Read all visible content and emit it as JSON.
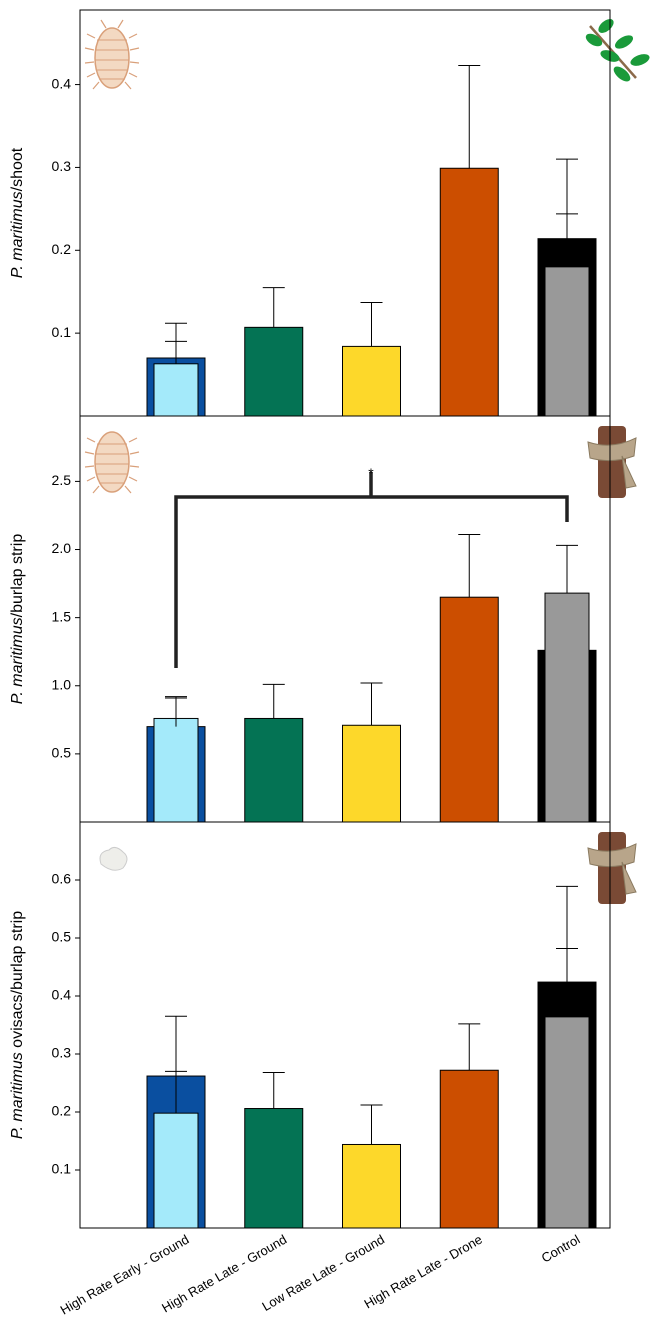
{
  "chart_data": [
    {
      "type": "bar",
      "ylabel": {
        "italic": "P. maritimus",
        "text": "/shoot"
      },
      "ylim": [
        0,
        0.49
      ],
      "yticks": [
        0.1,
        0.2,
        0.3,
        0.4
      ],
      "series": [
        {
          "colors": [
            "#0a4fa0",
            "#047354",
            "#fdd82a",
            "#cc4e00",
            "#000000"
          ],
          "values": [
            0.07,
            0.107,
            0.084,
            0.299,
            0.214
          ],
          "errors": [
            0.042,
            0.048,
            0.053,
            0.124,
            0.096
          ]
        },
        {
          "colors": [
            "#a4eafa",
            null,
            null,
            null,
            "#999999"
          ],
          "values": [
            0.063,
            null,
            null,
            null,
            0.18
          ],
          "errors": [
            0.027,
            null,
            null,
            null,
            0.064
          ]
        }
      ]
    },
    {
      "type": "bar",
      "ylabel": {
        "italic": "P. maritimus",
        "text": "/burlap strip"
      },
      "ylim": [
        0,
        2.98
      ],
      "yticks": [
        0.5,
        {
          "value": 1,
          "label": "1.0"
        },
        1.5,
        {
          "value": 2,
          "label": "2.0"
        },
        2.5
      ],
      "annotation": "*",
      "series": [
        {
          "colors": [
            "#0a4fa0",
            "#047354",
            "#fdd82a",
            "#cc4e00",
            "#000000"
          ],
          "values": [
            0.7,
            0.76,
            0.71,
            1.65,
            1.26
          ],
          "errors": [
            0.21,
            0.25,
            0.31,
            0.46,
            null
          ]
        },
        {
          "colors": [
            "#a4eafa",
            null,
            null,
            null,
            "#999999"
          ],
          "values": [
            0.76,
            null,
            null,
            null,
            1.68
          ],
          "errors": [
            0.16,
            null,
            null,
            null,
            0.35
          ]
        }
      ]
    },
    {
      "type": "bar",
      "ylabel": {
        "italic": "P. maritimus",
        "text": " ovisacs/burlap strip"
      },
      "ylim": [
        0,
        0.7
      ],
      "yticks": [
        0.1,
        0.2,
        0.3,
        0.4,
        0.5,
        0.6
      ],
      "categories": [
        "High Rate Early - Ground",
        "High Rate Late - Ground",
        "Low Rate Late - Ground",
        "High Rate Late - Drone",
        "Control"
      ],
      "series": [
        {
          "colors": [
            "#0a4fa0",
            "#047354",
            "#fdd82a",
            "#cc4e00",
            "#000000"
          ],
          "values": [
            0.262,
            0.206,
            0.144,
            0.272,
            0.424
          ],
          "errors": [
            0.103,
            0.062,
            0.068,
            0.08,
            0.165
          ]
        },
        {
          "colors": [
            "#a4eafa",
            null,
            null,
            null,
            "#999999"
          ],
          "values": [
            0.198,
            null,
            null,
            null,
            0.364
          ],
          "errors": [
            0.072,
            null,
            null,
            null,
            0.118
          ]
        }
      ]
    }
  ]
}
